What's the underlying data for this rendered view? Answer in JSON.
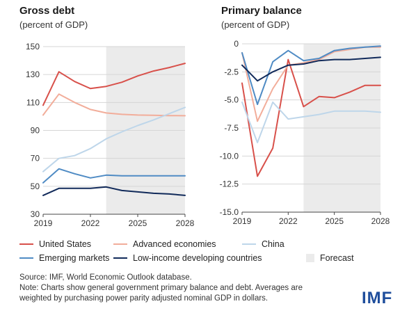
{
  "charts": [
    {
      "title": "Gross debt",
      "subtitle": "(percent of GDP)"
    },
    {
      "title": "Primary balance",
      "subtitle": "(percent of GDP)"
    }
  ],
  "chart_data": [
    {
      "type": "line",
      "title": "Gross debt",
      "subtitle": "(percent of GDP)",
      "x": [
        2019,
        2020,
        2021,
        2022,
        2023,
        2024,
        2025,
        2026,
        2027,
        2028
      ],
      "xticks": [
        "2019",
        "2022",
        "2025",
        "2028"
      ],
      "xlim": [
        2019,
        2028
      ],
      "ylim": [
        30,
        150
      ],
      "yticks": [
        "30",
        "50",
        "70",
        "90",
        "110",
        "130",
        "150"
      ],
      "forecast_start": 2023,
      "grid": true,
      "series": [
        {
          "name": "United States",
          "values": [
            108,
            132,
            125,
            120,
            121.5,
            124.5,
            129,
            132.5,
            135,
            138
          ]
        },
        {
          "name": "Advanced economies",
          "values": [
            101,
            116,
            110,
            105,
            102.5,
            101.5,
            101,
            100.8,
            100.6,
            100.5
          ]
        },
        {
          "name": "China",
          "values": [
            60.5,
            70,
            72,
            77,
            84,
            89,
            93.5,
            97.5,
            102,
            106.5
          ]
        },
        {
          "name": "Emerging markets",
          "values": [
            52.5,
            62.5,
            59,
            56,
            58,
            57.5,
            57.5,
            57.5,
            57.5,
            57.5
          ]
        },
        {
          "name": "Low-income developing countries",
          "values": [
            43.5,
            48.5,
            48.5,
            48.5,
            49.5,
            47,
            46,
            45,
            44.5,
            43.5
          ]
        }
      ]
    },
    {
      "type": "line",
      "title": "Primary balance",
      "subtitle": "(percent of GDP)",
      "x": [
        2019,
        2020,
        2021,
        2022,
        2023,
        2024,
        2025,
        2026,
        2027,
        2028
      ],
      "xticks": [
        "2019",
        "2022",
        "2025",
        "2028"
      ],
      "xlim": [
        2019,
        2028
      ],
      "ylim": [
        -15,
        0
      ],
      "yticks": [
        "0",
        "-2.5",
        "-5.0",
        "-7.5",
        "-10.0",
        "-12.5",
        "-15.0"
      ],
      "forecast_start": 2023,
      "grid": true,
      "series": [
        {
          "name": "United States",
          "values": [
            -3.5,
            -11.8,
            -9.3,
            -1.4,
            -5.6,
            -4.7,
            -4.8,
            -4.3,
            -3.7,
            -3.7
          ]
        },
        {
          "name": "Advanced economies",
          "values": [
            -0.8,
            -6.9,
            -4.0,
            -1.9,
            -1.7,
            -1.4,
            -0.7,
            -0.5,
            -0.3,
            -0.3
          ]
        },
        {
          "name": "China",
          "values": [
            -5.2,
            -8.8,
            -5.2,
            -6.7,
            -6.5,
            -6.3,
            -6.0,
            -6.0,
            -6.0,
            -6.1
          ]
        },
        {
          "name": "Emerging markets",
          "values": [
            -0.8,
            -5.4,
            -1.6,
            -0.6,
            -1.5,
            -1.3,
            -0.6,
            -0.4,
            -0.3,
            -0.2
          ]
        },
        {
          "name": "Low-income developing countries",
          "values": [
            -1.9,
            -3.3,
            -2.5,
            -1.9,
            -1.8,
            -1.5,
            -1.4,
            -1.4,
            -1.3,
            -1.2
          ]
        }
      ]
    }
  ],
  "colors": {
    "United States": "#d8504a",
    "Advanced economies": "#f2ad9a",
    "China": "#bed6ea",
    "Emerging markets": "#4f8bc4",
    "Low-income developing countries": "#112a5a",
    "forecast": "#ebebeb",
    "grid": "#d6d6d6"
  },
  "legend": {
    "us": "United States",
    "ae": "Advanced economies",
    "china": "China",
    "em": "Emerging markets",
    "lidc": "Low-income developing countries",
    "forecast": "Forecast"
  },
  "source": {
    "line1": "Source: IMF, World Economic Outlook database.",
    "line2": "Note: Charts show general government primary balance and debt. Averages are",
    "line3": "weighted by purchasing power parity adjusted nominal GDP in dollars."
  },
  "logo": "IMF"
}
